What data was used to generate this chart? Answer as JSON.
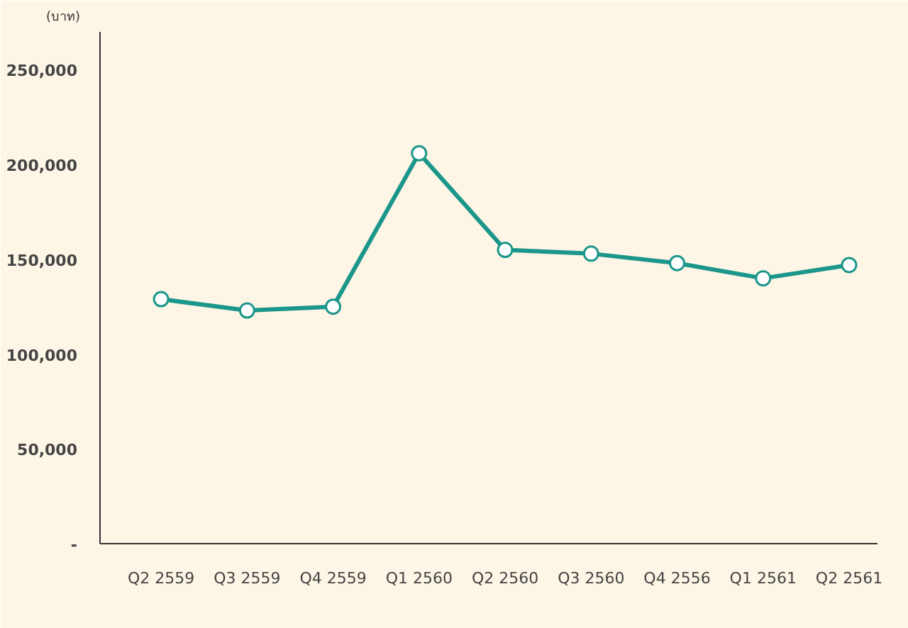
{
  "chart_data": {
    "type": "line",
    "ylabel": "(บาท)",
    "categories": [
      "Q2 2559",
      "Q3 2559",
      "Q4 2559",
      "Q1 2560",
      "Q2 2560",
      "Q3 2560",
      "Q4 2556",
      "Q1 2561",
      "Q2 2561"
    ],
    "series": [
      {
        "color": "#1b968a",
        "values": [
          129000,
          123000,
          125000,
          206000,
          155000,
          153000,
          148000,
          140000,
          147000
        ]
      }
    ],
    "ylim": [
      0,
      270000
    ],
    "yticks": [
      {
        "value": 0,
        "label": "-"
      },
      {
        "value": 50000,
        "label": "50,000"
      },
      {
        "value": 100000,
        "label": "100,000"
      },
      {
        "value": 150000,
        "label": "150,000"
      },
      {
        "value": 200000,
        "label": "200,000"
      },
      {
        "value": 250000,
        "label": "250,000"
      }
    ],
    "grid": false,
    "marker": "circle",
    "line_style": "solid"
  }
}
